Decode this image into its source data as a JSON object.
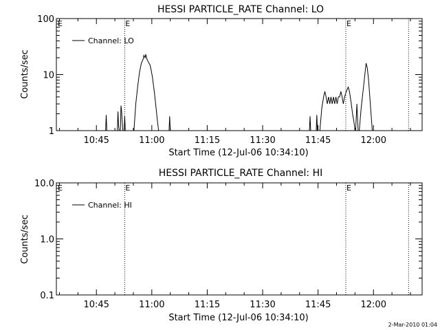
{
  "footer": {
    "timestamp": "2-Mar-2010 01:04"
  },
  "chart_data": [
    {
      "type": "line",
      "title": "HESSI PARTICLE_RATE Channel: LO",
      "xlabel": "Start Time (12-Jul-06 10:34:10)",
      "ylabel": "Counts/sec",
      "y_scale": "log",
      "ylim": [
        1,
        100
      ],
      "y_ticks": [
        1,
        10,
        100
      ],
      "y_tick_labels": [
        "1",
        "10",
        "100"
      ],
      "x_ticks": [
        "10:45",
        "11:00",
        "11:15",
        "11:30",
        "11:45",
        "12:00"
      ],
      "xlim": [
        "10:34:10",
        "12:13:10"
      ],
      "legend": {
        "placement": "top-left",
        "label": "Channel: LO"
      },
      "markers": [
        {
          "time": "10:52:40",
          "label": "E"
        },
        {
          "time": "11:52:30",
          "label": "E"
        },
        {
          "time": "12:09:30",
          "label": ""
        }
      ],
      "corner_label": "E",
      "series": [
        {
          "name": "Channel: LO",
          "segments": [
            [
              [
                "10:47:30",
                1.0
              ],
              [
                "10:47:40",
                1.9
              ],
              [
                "10:47:50",
                1.0
              ]
            ],
            [
              [
                "10:50:40",
                1.0
              ],
              [
                "10:50:50",
                2.2
              ],
              [
                "10:51:00",
                1.2
              ],
              [
                "10:51:10",
                1.0
              ]
            ],
            [
              [
                "10:51:30",
                1.0
              ],
              [
                "10:51:40",
                2.8
              ],
              [
                "10:51:50",
                2.2
              ],
              [
                "10:52:00",
                1.4
              ],
              [
                "10:52:10",
                1.0
              ]
            ],
            [
              [
                "10:52:30",
                1.0
              ],
              [
                "10:52:40",
                1.8
              ],
              [
                "10:52:50",
                1.0
              ]
            ],
            [
              [
                "10:55:10",
                1.0
              ],
              [
                "10:55:40",
                3.0
              ],
              [
                "10:56:10",
                6.0
              ],
              [
                "10:56:40",
                11.0
              ],
              [
                "10:57:10",
                16.0
              ],
              [
                "10:57:40",
                19.0
              ],
              [
                "10:57:50",
                22.0
              ],
              [
                "10:58:10",
                20.0
              ],
              [
                "10:58:20",
                23.0
              ],
              [
                "10:58:40",
                19.0
              ],
              [
                "10:59:00",
                17.0
              ],
              [
                "10:59:30",
                15.0
              ],
              [
                "10:59:50",
                12.0
              ],
              [
                "11:00:10",
                9.0
              ],
              [
                "11:00:40",
                5.0
              ],
              [
                "11:01:10",
                2.5
              ],
              [
                "11:01:30",
                1.5
              ],
              [
                "11:01:50",
                1.0
              ]
            ],
            [
              [
                "11:04:40",
                1.0
              ],
              [
                "11:04:50",
                1.8
              ],
              [
                "11:05:00",
                1.0
              ]
            ],
            [
              [
                "11:42:40",
                1.0
              ],
              [
                "11:42:50",
                1.8
              ],
              [
                "11:43:00",
                1.0
              ]
            ],
            [
              [
                "11:44:30",
                1.0
              ],
              [
                "11:44:40",
                1.9
              ],
              [
                "11:44:50",
                1.0
              ]
            ],
            [
              [
                "11:45:30",
                1.0
              ],
              [
                "11:46:00",
                2.5
              ],
              [
                "11:46:30",
                4.0
              ],
              [
                "11:46:50",
                5.0
              ],
              [
                "11:47:10",
                4.0
              ],
              [
                "11:47:30",
                3.0
              ],
              [
                "11:47:50",
                4.0
              ],
              [
                "11:48:10",
                3.0
              ],
              [
                "11:48:30",
                4.0
              ],
              [
                "11:48:50",
                3.0
              ],
              [
                "11:49:10",
                4.0
              ],
              [
                "11:49:30",
                3.0
              ],
              [
                "11:49:50",
                4.0
              ],
              [
                "11:50:10",
                3.0
              ],
              [
                "11:50:30",
                4.0
              ],
              [
                "11:50:50",
                4.0
              ],
              [
                "11:51:10",
                5.0
              ],
              [
                "11:51:30",
                4.0
              ],
              [
                "11:51:50",
                3.0
              ],
              [
                "11:52:10",
                4.0
              ],
              [
                "11:52:40",
                5.0
              ],
              [
                "11:53:10",
                6.0
              ],
              [
                "11:53:30",
                5.0
              ],
              [
                "11:54:00",
                3.0
              ],
              [
                "11:54:20",
                2.0
              ],
              [
                "11:54:40",
                1.5
              ],
              [
                "11:55:00",
                1.0
              ]
            ],
            [
              [
                "11:55:10",
                1.0
              ],
              [
                "11:55:30",
                3.0
              ],
              [
                "11:55:50",
                1.0
              ]
            ],
            [
              [
                "11:56:10",
                1.0
              ],
              [
                "11:56:40",
                2.5
              ],
              [
                "11:57:10",
                5.0
              ],
              [
                "11:57:40",
                10.0
              ],
              [
                "11:58:00",
                16.0
              ],
              [
                "11:58:20",
                13.0
              ],
              [
                "11:58:40",
                8.0
              ],
              [
                "11:59:00",
                4.0
              ],
              [
                "11:59:20",
                2.0
              ],
              [
                "11:59:40",
                1.0
              ]
            ]
          ]
        }
      ]
    },
    {
      "type": "line",
      "title": "HESSI PARTICLE_RATE Channel: HI",
      "xlabel": "Start Time (12-Jul-06 10:34:10)",
      "ylabel": "Counts/sec",
      "y_scale": "log",
      "ylim": [
        0.1,
        10
      ],
      "y_ticks": [
        0.1,
        1,
        10
      ],
      "y_tick_labels": [
        "0.1",
        "1.0",
        "10.0"
      ],
      "x_ticks": [
        "10:45",
        "11:00",
        "11:15",
        "11:30",
        "11:45",
        "12:00"
      ],
      "xlim": [
        "10:34:10",
        "12:13:10"
      ],
      "legend": {
        "placement": "top-left",
        "label": "Channel: HI"
      },
      "markers": [
        {
          "time": "10:52:40",
          "label": "E"
        },
        {
          "time": "11:52:30",
          "label": "E"
        },
        {
          "time": "12:09:30",
          "label": ""
        }
      ],
      "corner_label": "E",
      "series": [
        {
          "name": "Channel: HI",
          "segments": []
        }
      ]
    }
  ]
}
